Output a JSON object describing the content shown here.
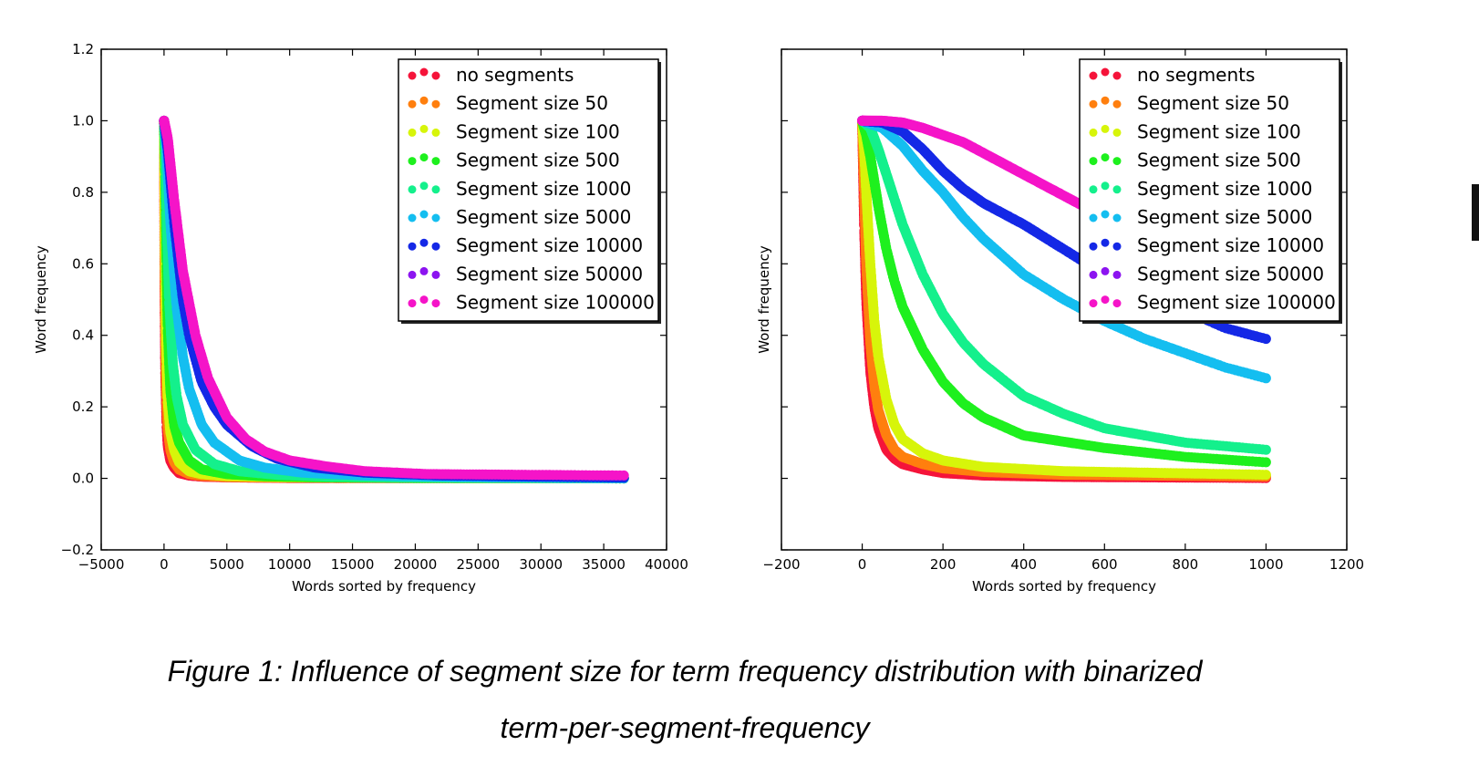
{
  "charts_shared": {
    "ylabel": "Word frequency",
    "xlabel": "Words sorted by frequency",
    "legend": [
      "no segments",
      "Segment size 50",
      "Segment size 100",
      "Segment size 500",
      "Segment size 1000",
      "Segment size 5000",
      "Segment size 10000",
      "Segment size 50000",
      "Segment size 100000"
    ]
  },
  "caption": {
    "line1": "Figure 1: Influence of segment size for term frequency distribution with binarized",
    "line2": "term-per-segment-frequency"
  },
  "chart_data": [
    {
      "type": "scatter",
      "xlabel": "Words sorted by frequency",
      "ylabel": "Word frequency",
      "xlim": [
        -5000,
        40000
      ],
      "ylim": [
        -0.2,
        1.2
      ],
      "xticks": [
        -5000,
        0,
        5000,
        10000,
        15000,
        20000,
        25000,
        30000,
        35000,
        40000
      ],
      "xtick_labels": [
        "−5000",
        "0",
        "5000",
        "10000",
        "15000",
        "20000",
        "25000",
        "30000",
        "35000",
        "40000"
      ],
      "yticks": [
        -0.2,
        0.0,
        0.2,
        0.4,
        0.6,
        0.8,
        1.0,
        1.2
      ],
      "ytick_labels": [
        "−0.2",
        "0.0",
        "0.2",
        "0.4",
        "0.6",
        "0.8",
        "1.0",
        "1.2"
      ],
      "legend_position": "top-right",
      "grid": false,
      "x_end": 36600,
      "series": [
        {
          "name": "no segments",
          "color": "#f5143a",
          "x": [
            0,
            50,
            100,
            200,
            300,
            500,
            800,
            1200,
            2000,
            3000,
            5000,
            10000,
            20000,
            36600
          ],
          "y": [
            1.0,
            0.5,
            0.3,
            0.15,
            0.09,
            0.05,
            0.03,
            0.015,
            0.008,
            0.005,
            0.003,
            0.001,
            0.0005,
            0.0
          ]
        },
        {
          "name": "Segment size 50",
          "color": "#ff7f0e",
          "x": [
            0,
            50,
            100,
            200,
            300,
            500,
            800,
            1200,
            2000,
            3000,
            5000,
            10000,
            20000,
            36600
          ],
          "y": [
            1.0,
            0.6,
            0.4,
            0.22,
            0.14,
            0.08,
            0.045,
            0.025,
            0.012,
            0.007,
            0.004,
            0.002,
            0.001,
            0.0
          ]
        },
        {
          "name": "Segment size 100",
          "color": "#d7f50a",
          "x": [
            0,
            50,
            100,
            200,
            300,
            500,
            800,
            1200,
            2000,
            3000,
            5000,
            10000,
            20000,
            36600
          ],
          "y": [
            1.0,
            0.75,
            0.55,
            0.32,
            0.22,
            0.13,
            0.08,
            0.045,
            0.02,
            0.012,
            0.006,
            0.003,
            0.001,
            0.0
          ]
        },
        {
          "name": "Segment size 500",
          "color": "#1ef01e",
          "x": [
            0,
            100,
            200,
            300,
            500,
            800,
            1200,
            2000,
            3000,
            5000,
            8000,
            12000,
            20000,
            36600
          ],
          "y": [
            1.0,
            0.85,
            0.6,
            0.42,
            0.25,
            0.15,
            0.1,
            0.05,
            0.025,
            0.012,
            0.006,
            0.003,
            0.001,
            0.0
          ]
        },
        {
          "name": "Segment size 1000",
          "color": "#14f08c",
          "x": [
            0,
            100,
            200,
            400,
            700,
            1000,
            1500,
            2500,
            4000,
            6000,
            9000,
            13000,
            20000,
            36600
          ],
          "y": [
            1.0,
            0.92,
            0.75,
            0.5,
            0.32,
            0.23,
            0.15,
            0.08,
            0.04,
            0.02,
            0.01,
            0.005,
            0.002,
            0.0
          ]
        },
        {
          "name": "Segment size 5000",
          "color": "#14bef0",
          "x": [
            0,
            200,
            500,
            1000,
            1500,
            2000,
            3000,
            4000,
            6000,
            8000,
            11000,
            16000,
            24000,
            36600
          ],
          "y": [
            1.0,
            0.92,
            0.72,
            0.48,
            0.34,
            0.25,
            0.15,
            0.1,
            0.05,
            0.03,
            0.016,
            0.008,
            0.003,
            0.0
          ]
        },
        {
          "name": "Segment size 10000",
          "color": "#1428e6",
          "x": [
            0,
            300,
            800,
            1500,
            2000,
            3000,
            4000,
            5000,
            7000,
            9000,
            12000,
            16000,
            22000,
            36600
          ],
          "y": [
            1.0,
            0.92,
            0.72,
            0.5,
            0.4,
            0.27,
            0.2,
            0.15,
            0.09,
            0.055,
            0.03,
            0.016,
            0.008,
            0.002
          ]
        },
        {
          "name": "Segment size 50000",
          "color": "#8c14f0",
          "x": [],
          "y": []
        },
        {
          "name": "Segment size 100000",
          "color": "#f514c8",
          "x": [
            0,
            300,
            800,
            1500,
            2500,
            3500,
            5000,
            6500,
            8000,
            10000,
            13000,
            16000,
            21000,
            36600
          ],
          "y": [
            1.0,
            0.95,
            0.78,
            0.58,
            0.4,
            0.28,
            0.17,
            0.11,
            0.075,
            0.05,
            0.033,
            0.02,
            0.012,
            0.008
          ]
        }
      ]
    },
    {
      "type": "scatter",
      "xlabel": "Words sorted by frequency",
      "ylabel": "Word frequency",
      "xlim": [
        -200,
        1200
      ],
      "ylim": [
        -0.2,
        1.2
      ],
      "xticks": [
        -200,
        0,
        200,
        400,
        600,
        800,
        1000,
        1200
      ],
      "xtick_labels": [
        "−200",
        "0",
        "200",
        "400",
        "600",
        "800",
        "1000",
        "1200"
      ],
      "yticks": [
        -0.2,
        0.0,
        0.2,
        0.4,
        0.6,
        0.8,
        1.0,
        1.2
      ],
      "ytick_labels": [],
      "legend_position": "top-right",
      "grid": false,
      "x_end": 1000,
      "series": [
        {
          "name": "no segments",
          "color": "#f5143a",
          "x": [
            0,
            5,
            10,
            20,
            30,
            40,
            60,
            80,
            100,
            150,
            200,
            300,
            500,
            1000
          ],
          "y": [
            1.0,
            0.7,
            0.5,
            0.3,
            0.2,
            0.14,
            0.08,
            0.055,
            0.04,
            0.025,
            0.015,
            0.008,
            0.004,
            0.001
          ]
        },
        {
          "name": "Segment size 50",
          "color": "#ff7f0e",
          "x": [
            0,
            5,
            10,
            20,
            30,
            40,
            60,
            80,
            100,
            150,
            200,
            300,
            500,
            1000
          ],
          "y": [
            1.0,
            0.8,
            0.6,
            0.38,
            0.26,
            0.19,
            0.12,
            0.08,
            0.06,
            0.04,
            0.028,
            0.018,
            0.01,
            0.005
          ]
        },
        {
          "name": "Segment size 100",
          "color": "#d7f50a",
          "x": [
            0,
            5,
            10,
            20,
            30,
            40,
            60,
            80,
            100,
            150,
            200,
            300,
            500,
            1000
          ],
          "y": [
            1.0,
            0.92,
            0.8,
            0.6,
            0.44,
            0.34,
            0.22,
            0.15,
            0.11,
            0.07,
            0.05,
            0.032,
            0.02,
            0.01
          ]
        },
        {
          "name": "Segment size 500",
          "color": "#1ef01e",
          "x": [
            0,
            10,
            20,
            40,
            60,
            80,
            100,
            150,
            200,
            250,
            300,
            400,
            600,
            800,
            1000
          ],
          "y": [
            1.0,
            0.96,
            0.9,
            0.76,
            0.64,
            0.55,
            0.48,
            0.36,
            0.27,
            0.21,
            0.17,
            0.12,
            0.085,
            0.06,
            0.045
          ]
        },
        {
          "name": "Segment size 1000",
          "color": "#14f08c",
          "x": [
            0,
            20,
            40,
            60,
            80,
            100,
            150,
            200,
            250,
            300,
            400,
            500,
            600,
            800,
            1000
          ],
          "y": [
            1.0,
            0.98,
            0.92,
            0.85,
            0.78,
            0.71,
            0.57,
            0.46,
            0.38,
            0.32,
            0.23,
            0.18,
            0.14,
            0.1,
            0.08
          ]
        },
        {
          "name": "Segment size 5000",
          "color": "#14bef0",
          "x": [
            0,
            50,
            100,
            150,
            200,
            250,
            300,
            350,
            400,
            500,
            600,
            700,
            800,
            900,
            1000
          ],
          "y": [
            1.0,
            0.98,
            0.93,
            0.86,
            0.8,
            0.73,
            0.67,
            0.62,
            0.57,
            0.5,
            0.44,
            0.39,
            0.35,
            0.31,
            0.28
          ]
        },
        {
          "name": "Segment size 10000",
          "color": "#1428e6",
          "x": [
            0,
            50,
            100,
            150,
            200,
            250,
            300,
            350,
            400,
            500,
            600,
            700,
            800,
            900,
            1000
          ],
          "y": [
            1.0,
            0.995,
            0.97,
            0.92,
            0.86,
            0.81,
            0.77,
            0.74,
            0.71,
            0.64,
            0.57,
            0.52,
            0.47,
            0.42,
            0.39
          ]
        },
        {
          "name": "Segment size 50000",
          "color": "#8c14f0",
          "x": [],
          "y": []
        },
        {
          "name": "Segment size 100000",
          "color": "#f514c8",
          "x": [
            0,
            50,
            100,
            150,
            200,
            250,
            300,
            350,
            400,
            450,
            500,
            550,
            600,
            650,
            700
          ],
          "y": [
            1.0,
            1.0,
            0.995,
            0.98,
            0.96,
            0.94,
            0.91,
            0.88,
            0.85,
            0.82,
            0.79,
            0.76,
            0.74,
            0.72,
            0.7
          ]
        }
      ]
    }
  ]
}
